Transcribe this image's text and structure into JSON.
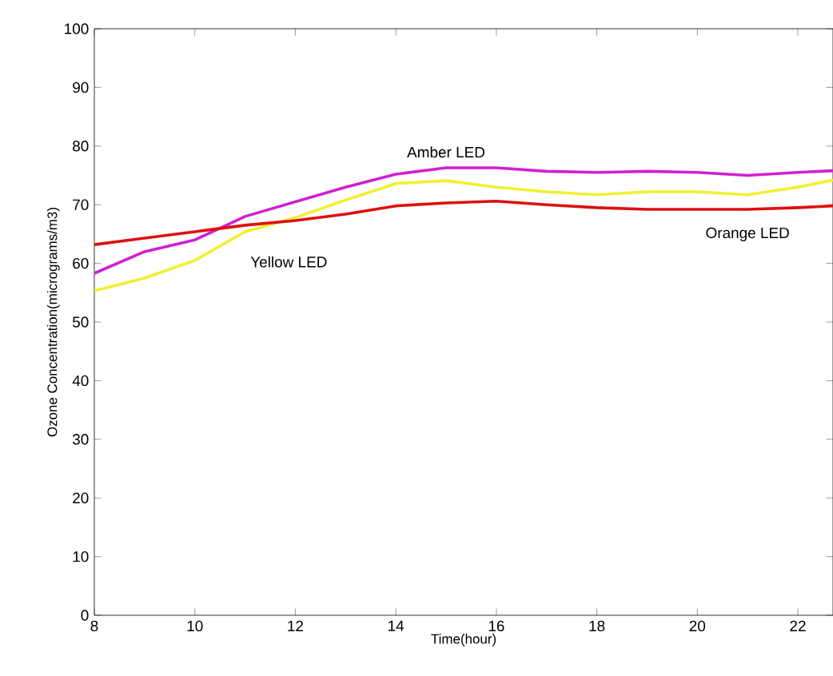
{
  "chart_data": {
    "type": "line",
    "xlabel": "Time(hour)",
    "ylabel": "Ozone Concentration(micrograms/m3)",
    "x": [
      8,
      9,
      10,
      11,
      12,
      13,
      14,
      15,
      16,
      17,
      18,
      19,
      20,
      21,
      22,
      22.7
    ],
    "series": [
      {
        "name": "Amber LED",
        "color": "#d020d0",
        "values": [
          58.3,
          62,
          64,
          68,
          70.5,
          73,
          75.2,
          76.3,
          76.3,
          75.7,
          75.5,
          75.7,
          75.5,
          75,
          75.5,
          75.8
        ]
      },
      {
        "name": "Yellow LED",
        "color": "#f0f030",
        "values": [
          55.3,
          57.5,
          60.5,
          65.4,
          67.8,
          70.8,
          73.6,
          74.1,
          73,
          72.2,
          71.7,
          72.2,
          72.2,
          71.7,
          73,
          74.2
        ]
      },
      {
        "name": "Orange LED",
        "color": "#dd1010",
        "values": [
          63.2,
          64.3,
          65.4,
          66.5,
          67.3,
          68.4,
          69.8,
          70.3,
          70.6,
          70,
          69.5,
          69.2,
          69.2,
          69.2,
          69.5,
          69.8
        ]
      }
    ],
    "xlim": [
      8,
      22.7
    ],
    "ylim": [
      0,
      100
    ],
    "xticks": [
      8,
      10,
      12,
      14,
      16,
      18,
      20,
      22
    ],
    "yticks": [
      0,
      10,
      20,
      30,
      40,
      50,
      60,
      70,
      80,
      90,
      100
    ],
    "grid": false,
    "legend": false,
    "marker": "none",
    "line_style": "solid"
  }
}
